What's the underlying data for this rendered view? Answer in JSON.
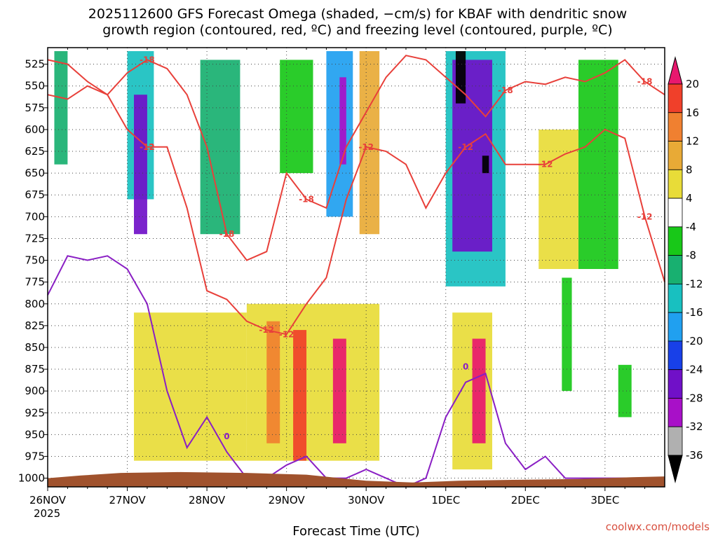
{
  "chart_data": {
    "type": "heatmap",
    "title_line1": "2025112600 GFS Forecast Omega (shaded, −cm/s) for KBAF with dendritic snow",
    "title_line2": "growth region (contoured, red, ºC) and freezing level (contoured, purple, ºC)",
    "xlabel": "Forecast Time (UTC)",
    "x_ticks": [
      "26NOV",
      "27NOV",
      "28NOV",
      "29NOV",
      "30NOV",
      "1DEC",
      "2DEC",
      "3DEC"
    ],
    "x_year_label": "2025",
    "xlim_hours": [
      0,
      186
    ],
    "y_ticks": [
      525,
      550,
      575,
      600,
      625,
      650,
      675,
      700,
      725,
      750,
      775,
      800,
      825,
      850,
      875,
      900,
      925,
      950,
      975,
      1000
    ],
    "ylim_hpa": [
      506,
      1010
    ],
    "colorbar": {
      "labels": [
        "20",
        "16",
        "12",
        "8",
        "4",
        "-4",
        "-8",
        "-12",
        "-16",
        "-20",
        "-24",
        "-28",
        "-32",
        "-36"
      ],
      "boundaries": [
        20,
        16,
        12,
        8,
        4,
        -4,
        -8,
        -12,
        -16,
        -20,
        -24,
        -28,
        -32,
        -36
      ],
      "colors": [
        "#e8186e",
        "#f0402a",
        "#f08030",
        "#e8aa36",
        "#e8dc38",
        "#ffffff",
        "#18c818",
        "#18b070",
        "#18c0c0",
        "#20a0f0",
        "#1840e8",
        "#7010c8",
        "#a810c8",
        "#b0b0b0",
        "#000000"
      ]
    },
    "contour_labels_red": [
      "-12",
      "-18",
      "-12",
      "-12",
      "-18",
      "-18",
      "-12",
      "-12",
      "-12",
      "-18",
      "-12",
      "-18",
      "-12"
    ],
    "contour_labels_purple": [
      "0",
      "0"
    ],
    "series": [
      {
        "name": "dendritic_top_-18C",
        "x": [
          0,
          6,
          12,
          18,
          24,
          30,
          36,
          42,
          48,
          54,
          60,
          66,
          72,
          78,
          84,
          90,
          96,
          102,
          108,
          114,
          120,
          126,
          132,
          138,
          144,
          150,
          156,
          162,
          168,
          174,
          180,
          186
        ],
        "values": [
          520,
          525,
          545,
          560,
          535,
          520,
          530,
          560,
          620,
          720,
          750,
          740,
          650,
          680,
          690,
          620,
          580,
          540,
          515,
          520,
          540,
          560,
          585,
          555,
          545,
          548,
          540,
          545,
          535,
          520,
          545,
          560
        ]
      },
      {
        "name": "dendritic_bottom_-12C",
        "x": [
          0,
          6,
          12,
          18,
          24,
          30,
          36,
          42,
          48,
          54,
          60,
          66,
          72,
          78,
          84,
          90,
          96,
          102,
          108,
          114,
          120,
          126,
          132,
          138,
          144,
          150,
          156,
          162,
          168,
          174,
          180,
          186
        ],
        "values": [
          560,
          565,
          550,
          560,
          600,
          620,
          620,
          690,
          785,
          795,
          820,
          830,
          835,
          800,
          770,
          680,
          620,
          625,
          640,
          690,
          650,
          620,
          605,
          640,
          640,
          640,
          628,
          620,
          600,
          610,
          700,
          775
        ]
      },
      {
        "name": "freezing_level_0C",
        "x": [
          0,
          6,
          12,
          18,
          24,
          30,
          36,
          42,
          48,
          54,
          60,
          66,
          72,
          78,
          84,
          90,
          96,
          102,
          108,
          114,
          120,
          126,
          132,
          138,
          144,
          150,
          156,
          162,
          168,
          174,
          180,
          186
        ],
        "values": [
          790,
          745,
          750,
          745,
          760,
          800,
          900,
          965,
          930,
          970,
          1000,
          1000,
          985,
          975,
          1000,
          1000,
          990,
          1000,
          1010,
          1000,
          930,
          890,
          880,
          960,
          990,
          975,
          1000,
          1000,
          1000,
          1000,
          1000,
          1000
        ]
      }
    ],
    "omega_cells": [
      {
        "x": [
          2,
          6
        ],
        "p": [
          510,
          640
        ],
        "v": -10
      },
      {
        "x": [
          24,
          32
        ],
        "p": [
          510,
          680
        ],
        "v": -14
      },
      {
        "x": [
          26,
          30
        ],
        "p": [
          560,
          720
        ],
        "v": -26
      },
      {
        "x": [
          46,
          58
        ],
        "p": [
          520,
          720
        ],
        "v": -10
      },
      {
        "x": [
          70,
          80
        ],
        "p": [
          520,
          650
        ],
        "v": -8
      },
      {
        "x": [
          84,
          92
        ],
        "p": [
          510,
          700
        ],
        "v": -18
      },
      {
        "x": [
          88,
          90
        ],
        "p": [
          540,
          640
        ],
        "v": -30
      },
      {
        "x": [
          94,
          100
        ],
        "p": [
          510,
          720
        ],
        "v": 8
      },
      {
        "x": [
          120,
          138
        ],
        "p": [
          510,
          780
        ],
        "v": -14
      },
      {
        "x": [
          122,
          134
        ],
        "p": [
          520,
          740
        ],
        "v": -26
      },
      {
        "x": [
          123,
          126
        ],
        "p": [
          510,
          570
        ],
        "v": -38
      },
      {
        "x": [
          131,
          133
        ],
        "p": [
          630,
          650
        ],
        "v": -38
      },
      {
        "x": [
          160,
          172
        ],
        "p": [
          520,
          760
        ],
        "v": -8
      },
      {
        "x": [
          148,
          160
        ],
        "p": [
          600,
          760
        ],
        "v": 6
      },
      {
        "x": [
          26,
          60
        ],
        "p": [
          810,
          980
        ],
        "v": 6
      },
      {
        "x": [
          60,
          100
        ],
        "p": [
          800,
          980
        ],
        "v": 7
      },
      {
        "x": [
          66,
          70
        ],
        "p": [
          820,
          960
        ],
        "v": 14
      },
      {
        "x": [
          74,
          78
        ],
        "p": [
          830,
          980
        ],
        "v": 17
      },
      {
        "x": [
          86,
          90
        ],
        "p": [
          840,
          960
        ],
        "v": 21
      },
      {
        "x": [
          122,
          134
        ],
        "p": [
          810,
          990
        ],
        "v": 7
      },
      {
        "x": [
          128,
          132
        ],
        "p": [
          840,
          960
        ],
        "v": 21
      },
      {
        "x": [
          155,
          158
        ],
        "p": [
          770,
          900
        ],
        "v": -6
      },
      {
        "x": [
          172,
          176
        ],
        "p": [
          870,
          930
        ],
        "v": -6
      }
    ]
  }
}
